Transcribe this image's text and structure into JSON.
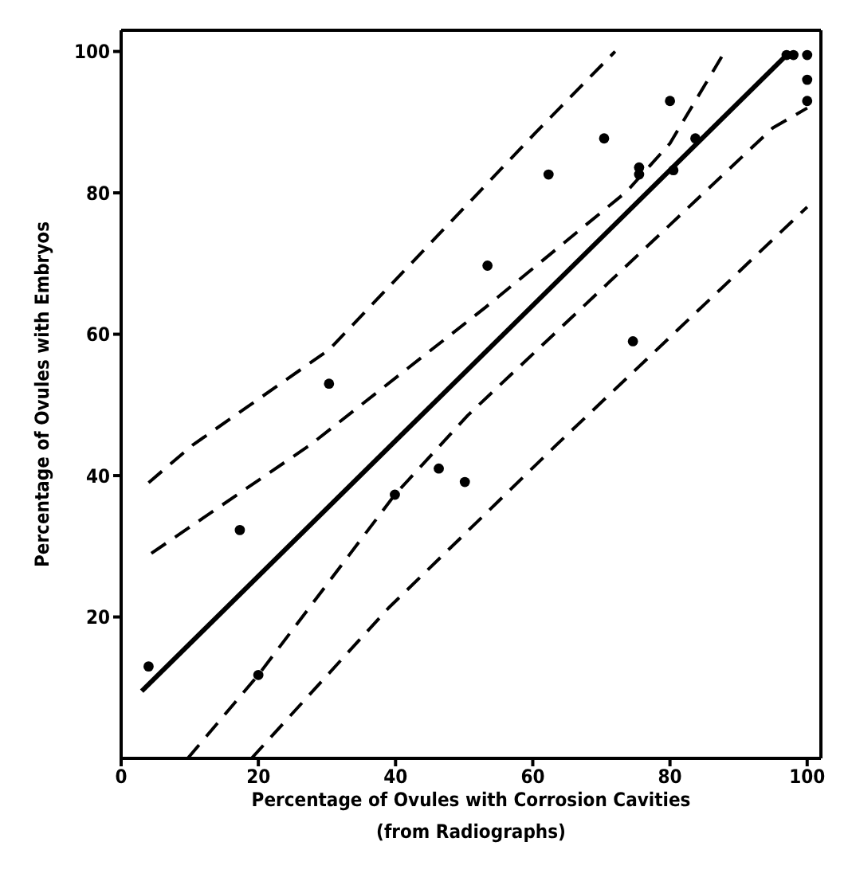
{
  "chart_data": {
    "type": "scatter",
    "xlabel": "Percentage of Ovules with Corrosion Cavities\n(from Radiographs)",
    "ylabel": "Percentage of Ovules with Embryos",
    "xlim": [
      0,
      102
    ],
    "ylim": [
      0,
      103
    ],
    "xticks": [
      0,
      20,
      40,
      60,
      80,
      100
    ],
    "yticks": [
      20,
      40,
      60,
      80,
      100
    ],
    "legend": false,
    "series": [
      {
        "type": "scatter",
        "color": "#000000",
        "marker": "circle",
        "x": [
          4,
          17.3,
          20,
          30.3,
          39.9,
          46.3,
          50.1,
          53.4,
          62.3,
          70.4,
          74.6,
          75.5,
          75.5,
          80,
          80.5,
          83.7,
          97,
          98,
          100,
          100,
          100
        ],
        "values": [
          13,
          32.3,
          11.8,
          53,
          37.3,
          41,
          39.1,
          69.7,
          82.6,
          87.7,
          59,
          83.6,
          82.6,
          93,
          83.2,
          87.7,
          99.5,
          99.5,
          99.5,
          96,
          93
        ]
      },
      {
        "type": "line",
        "color": "#000000",
        "line_style": "solid",
        "x": [
          3,
          97
        ],
        "values": [
          9.5,
          99.5
        ]
      },
      {
        "type": "line",
        "color": "#000000",
        "line_style": "dashed",
        "x": [
          4.4,
          27.5,
          53.1,
          73.7,
          80,
          88
        ],
        "values": [
          29,
          44.3,
          63.8,
          80.2,
          87,
          100
        ]
      },
      {
        "type": "line",
        "color": "#000000",
        "line_style": "dashed",
        "x": [
          4,
          10.4,
          30.3,
          60.4,
          72
        ],
        "values": [
          39,
          44.3,
          57.8,
          88.5,
          100
        ]
      },
      {
        "type": "line",
        "color": "#000000",
        "line_style": "dashed",
        "x": [
          9.7,
          20,
          39.9,
          50.5,
          95,
          100
        ],
        "values": [
          0,
          11.8,
          37.3,
          48.5,
          89.2,
          92
        ]
      },
      {
        "type": "line",
        "color": "#000000",
        "line_style": "dashed",
        "x": [
          19,
          39,
          63.4,
          100
        ],
        "values": [
          0,
          21.3,
          44.3,
          78
        ]
      }
    ]
  }
}
